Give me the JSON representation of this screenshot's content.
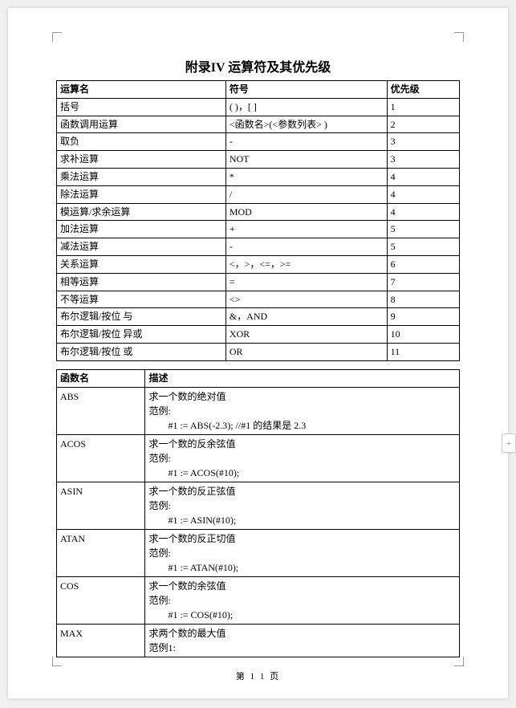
{
  "title": "附录IV  运算符及其优先级",
  "table1": {
    "headers": [
      "运算名",
      "符号",
      "优先级"
    ],
    "rows": [
      [
        "括号",
        "( )，[ ]",
        "1"
      ],
      [
        "函数调用运算",
        "<函数名>(<参数列表> )",
        "2"
      ],
      [
        "取负",
        "-",
        "3"
      ],
      [
        "求补运算",
        "NOT",
        "3"
      ],
      [
        "乘法运算",
        "*",
        "4"
      ],
      [
        "除法运算",
        "/",
        "4"
      ],
      [
        "模运算/求余运算",
        "MOD",
        "4"
      ],
      [
        "加法运算",
        "+",
        "5"
      ],
      [
        "减法运算",
        "-",
        "5"
      ],
      [
        "关系运算",
        "<，>，<=，>=",
        "6"
      ],
      [
        "相等运算",
        "=",
        "7"
      ],
      [
        "不等运算",
        "<>",
        "8"
      ],
      [
        "布尔逻辑/按位 与",
        "&，AND",
        "9"
      ],
      [
        "布尔逻辑/按位 异或",
        "XOR",
        "10"
      ],
      [
        "布尔逻辑/按位 或",
        "OR",
        "11"
      ]
    ]
  },
  "table2": {
    "headers": [
      "函数名",
      "描述"
    ],
    "rows": [
      {
        "name": "ABS",
        "desc": "求一个数的绝对值",
        "label": "范例:",
        "example": "#1 := ABS(-2.3);    //#1  的结果是  2.3"
      },
      {
        "name": "ACOS",
        "desc": "求一个数的反余弦值",
        "label": "范例:",
        "example": "#1 := ACOS(#10);"
      },
      {
        "name": "ASIN",
        "desc": "求一个数的反正弦值",
        "label": "范例:",
        "example": "#1 := ASIN(#10);"
      },
      {
        "name": "ATAN",
        "desc": "求一个数的反正切值",
        "label": "范例:",
        "example": "#1 := ATAN(#10);"
      },
      {
        "name": "COS",
        "desc": "求一个数的余弦值",
        "label": "范例:",
        "example": "#1 := COS(#10);"
      },
      {
        "name": "MAX",
        "desc": "求两个数的最大值",
        "label": "范例1:",
        "example": ""
      }
    ]
  },
  "footer": "第 1 1 页",
  "sideTab": "+"
}
